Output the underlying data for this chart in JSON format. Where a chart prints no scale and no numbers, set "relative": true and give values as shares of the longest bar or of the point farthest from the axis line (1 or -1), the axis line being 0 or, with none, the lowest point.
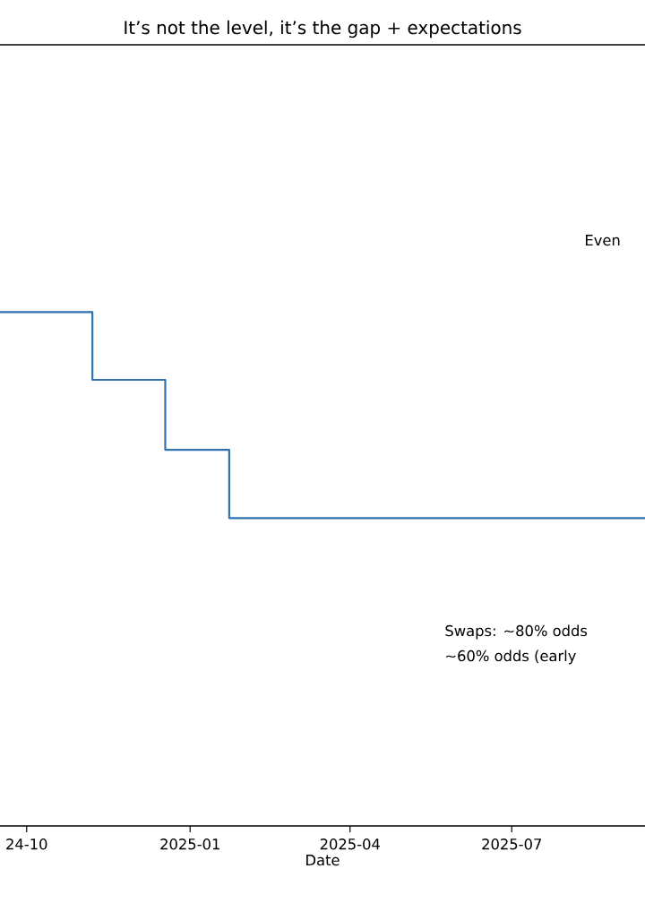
{
  "chart_data": {
    "type": "step",
    "title": "It’s not the level, it’s the gap + expectations",
    "xlabel": "Date",
    "relative": true,
    "x": [
      "2024-09-16",
      "2024-11-07",
      "2024-12-18",
      "2025-01-23",
      "2025-09-14"
    ],
    "values": [
      1,
      0.868,
      0.732,
      0.599,
      0.599
    ],
    "color": "#2f72ad",
    "xlim": [
      "2024-09-16",
      "2025-09-14"
    ],
    "xticks": [
      {
        "value": "2024-10-01",
        "label": "24-10"
      },
      "2025-01",
      "2025-04",
      "2025-07"
    ],
    "annotations": [
      "Even",
      "Swaps: ~80% odds",
      "~60% odds (early"
    ]
  }
}
